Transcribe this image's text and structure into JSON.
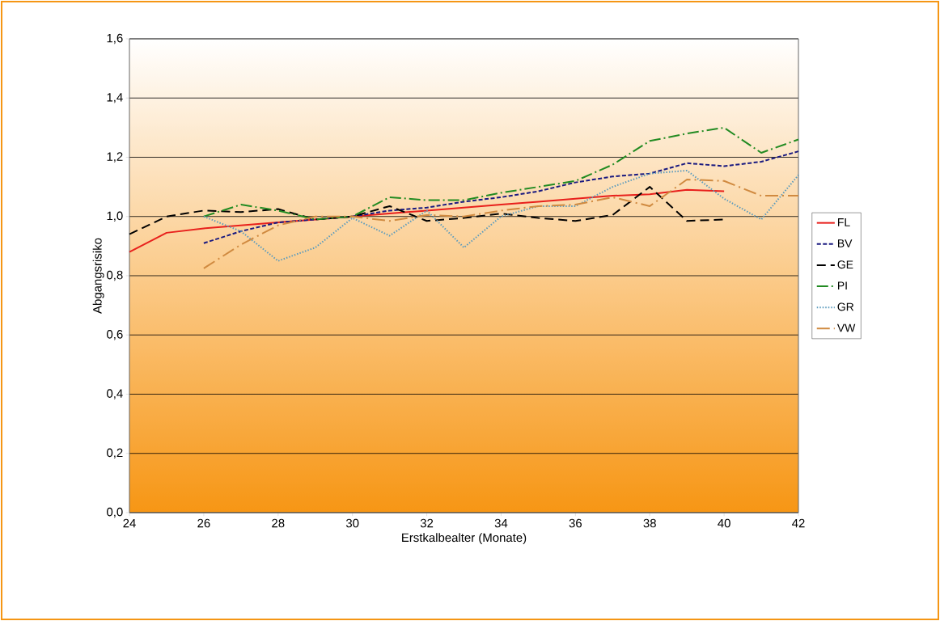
{
  "chart_data": {
    "type": "line",
    "xlabel": "Erstkalbealter (Monate)",
    "ylabel": "Abgangsrisiko",
    "x": [
      24,
      25,
      26,
      27,
      28,
      29,
      30,
      31,
      32,
      33,
      34,
      35,
      36,
      37,
      38,
      39,
      40,
      41,
      42
    ],
    "series": [
      {
        "name": "FL",
        "color": "#e8201c",
        "line_style": "solid",
        "values": [
          0.88,
          0.945,
          0.96,
          0.97,
          0.98,
          0.99,
          1.0,
          1.01,
          1.02,
          1.03,
          1.04,
          1.05,
          1.06,
          1.07,
          1.075,
          1.09,
          1.085,
          null,
          null
        ]
      },
      {
        "name": "BV",
        "color": "#1a1a80",
        "line_style": "dashed",
        "values": [
          null,
          null,
          0.91,
          0.95,
          0.98,
          0.99,
          1.0,
          1.02,
          1.03,
          1.05,
          1.065,
          1.085,
          1.115,
          1.135,
          1.145,
          1.18,
          1.17,
          1.185,
          1.22
        ]
      },
      {
        "name": "GE",
        "color": "#000000",
        "line_style": "dashed",
        "values": [
          0.94,
          1.0,
          1.02,
          1.015,
          1.025,
          0.99,
          1.0,
          1.035,
          0.985,
          0.995,
          1.01,
          0.995,
          0.985,
          1.005,
          1.1,
          0.985,
          0.99,
          null,
          null
        ]
      },
      {
        "name": "PI",
        "color": "#228b22",
        "line_style": "dashed",
        "values": [
          null,
          null,
          1.0,
          1.04,
          1.02,
          0.99,
          1.0,
          1.065,
          1.055,
          1.055,
          1.08,
          1.1,
          1.12,
          1.175,
          1.255,
          1.28,
          1.3,
          1.215,
          1.26
        ]
      },
      {
        "name": "GR",
        "color": "#5b9bbd",
        "line_style": "dotted",
        "values": [
          null,
          null,
          1.0,
          0.95,
          0.85,
          0.895,
          0.995,
          0.935,
          1.02,
          0.895,
          1.0,
          1.035,
          1.035,
          1.1,
          1.145,
          1.155,
          1.06,
          0.99,
          1.14
        ]
      },
      {
        "name": "VW",
        "color": "#d08a40",
        "line_style": "dashed",
        "values": [
          null,
          null,
          0.825,
          0.905,
          0.97,
          1.0,
          1.0,
          0.985,
          1.005,
          1.0,
          1.02,
          1.035,
          1.04,
          1.065,
          1.035,
          1.125,
          1.12,
          1.07,
          1.07
        ]
      }
    ],
    "xlim": [
      24,
      42
    ],
    "xticks": [
      24,
      26,
      28,
      30,
      32,
      34,
      36,
      38,
      40,
      42
    ],
    "ylim": [
      0,
      1.6
    ],
    "yticks": [
      {
        "value": 0,
        "label": "0,0"
      },
      {
        "value": 0.2,
        "label": "0,2"
      },
      {
        "value": 0.4,
        "label": "0,4"
      },
      {
        "value": 0.6,
        "label": "0,6"
      },
      {
        "value": 0.8,
        "label": "0,8"
      },
      {
        "value": 1.0,
        "label": "1,0"
      },
      {
        "value": 1.2,
        "label": "1,2"
      },
      {
        "value": 1.4,
        "label": "1,4"
      },
      {
        "value": 1.6,
        "label": "1,6"
      }
    ],
    "grid": "y",
    "legend": "right",
    "marker": "none"
  }
}
